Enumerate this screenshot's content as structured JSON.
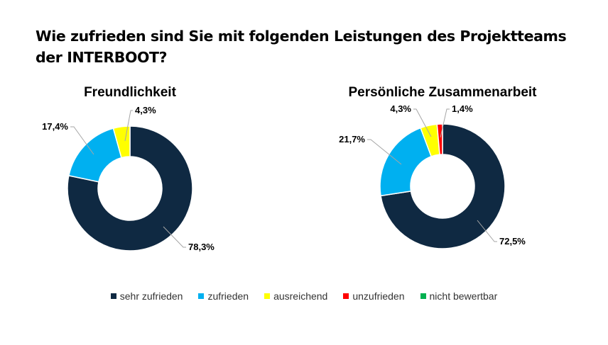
{
  "title": "Wie zufrieden sind Sie mit folgenden Leistungen des Projektteams der INTERBOOT?",
  "chart_data": [
    {
      "type": "pie",
      "variant": "donut",
      "title": "Freundlichkeit",
      "categories": [
        "sehr zufrieden",
        "zufrieden",
        "ausreichend",
        "unzufrieden",
        "nicht bewertbar"
      ],
      "values": [
        78.3,
        17.4,
        4.3,
        0,
        0
      ],
      "labels": [
        "78,3%",
        "17,4%",
        "4,3%",
        "",
        ""
      ],
      "colors": [
        "#0f2942",
        "#00b0f0",
        "#ffff00",
        "#ff0000",
        "#00b050"
      ]
    },
    {
      "type": "pie",
      "variant": "donut",
      "title": "Persönliche Zusammenarbeit",
      "categories": [
        "sehr zufrieden",
        "zufrieden",
        "ausreichend",
        "unzufrieden",
        "nicht bewertbar"
      ],
      "values": [
        72.5,
        21.7,
        4.3,
        1.4,
        0
      ],
      "labels": [
        "72,5%",
        "21,7%",
        "4,3%",
        "1,4%",
        ""
      ],
      "colors": [
        "#0f2942",
        "#00b0f0",
        "#ffff00",
        "#ff0000",
        "#00b050"
      ]
    }
  ],
  "legend": {
    "placement": "bottom",
    "items": [
      {
        "label": "sehr zufrieden",
        "color": "#0f2942"
      },
      {
        "label": "zufrieden",
        "color": "#00b0f0"
      },
      {
        "label": "ausreichend",
        "color": "#ffff00"
      },
      {
        "label": "unzufrieden",
        "color": "#ff0000"
      },
      {
        "label": "nicht bewertbar",
        "color": "#00b050"
      }
    ]
  }
}
